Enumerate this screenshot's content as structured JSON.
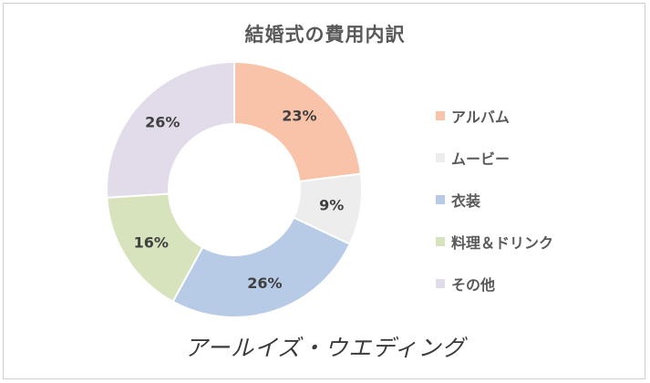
{
  "chart_data": {
    "type": "pie",
    "variant": "donut",
    "title": "結婚式の費用内訳",
    "categories": [
      "アルバム",
      "ムービー",
      "衣装",
      "料理＆ドリンク",
      "その他"
    ],
    "values": [
      23,
      9,
      26,
      16,
      26
    ],
    "labels": [
      "23%",
      "9%",
      "26%",
      "16%",
      "26%"
    ],
    "colors": [
      "#f8c3a8",
      "#ededed",
      "#b7cae6",
      "#d6e3bc",
      "#e2dbea"
    ],
    "legend_position": "right"
  },
  "watermark": "アールイズ・ウエディング"
}
